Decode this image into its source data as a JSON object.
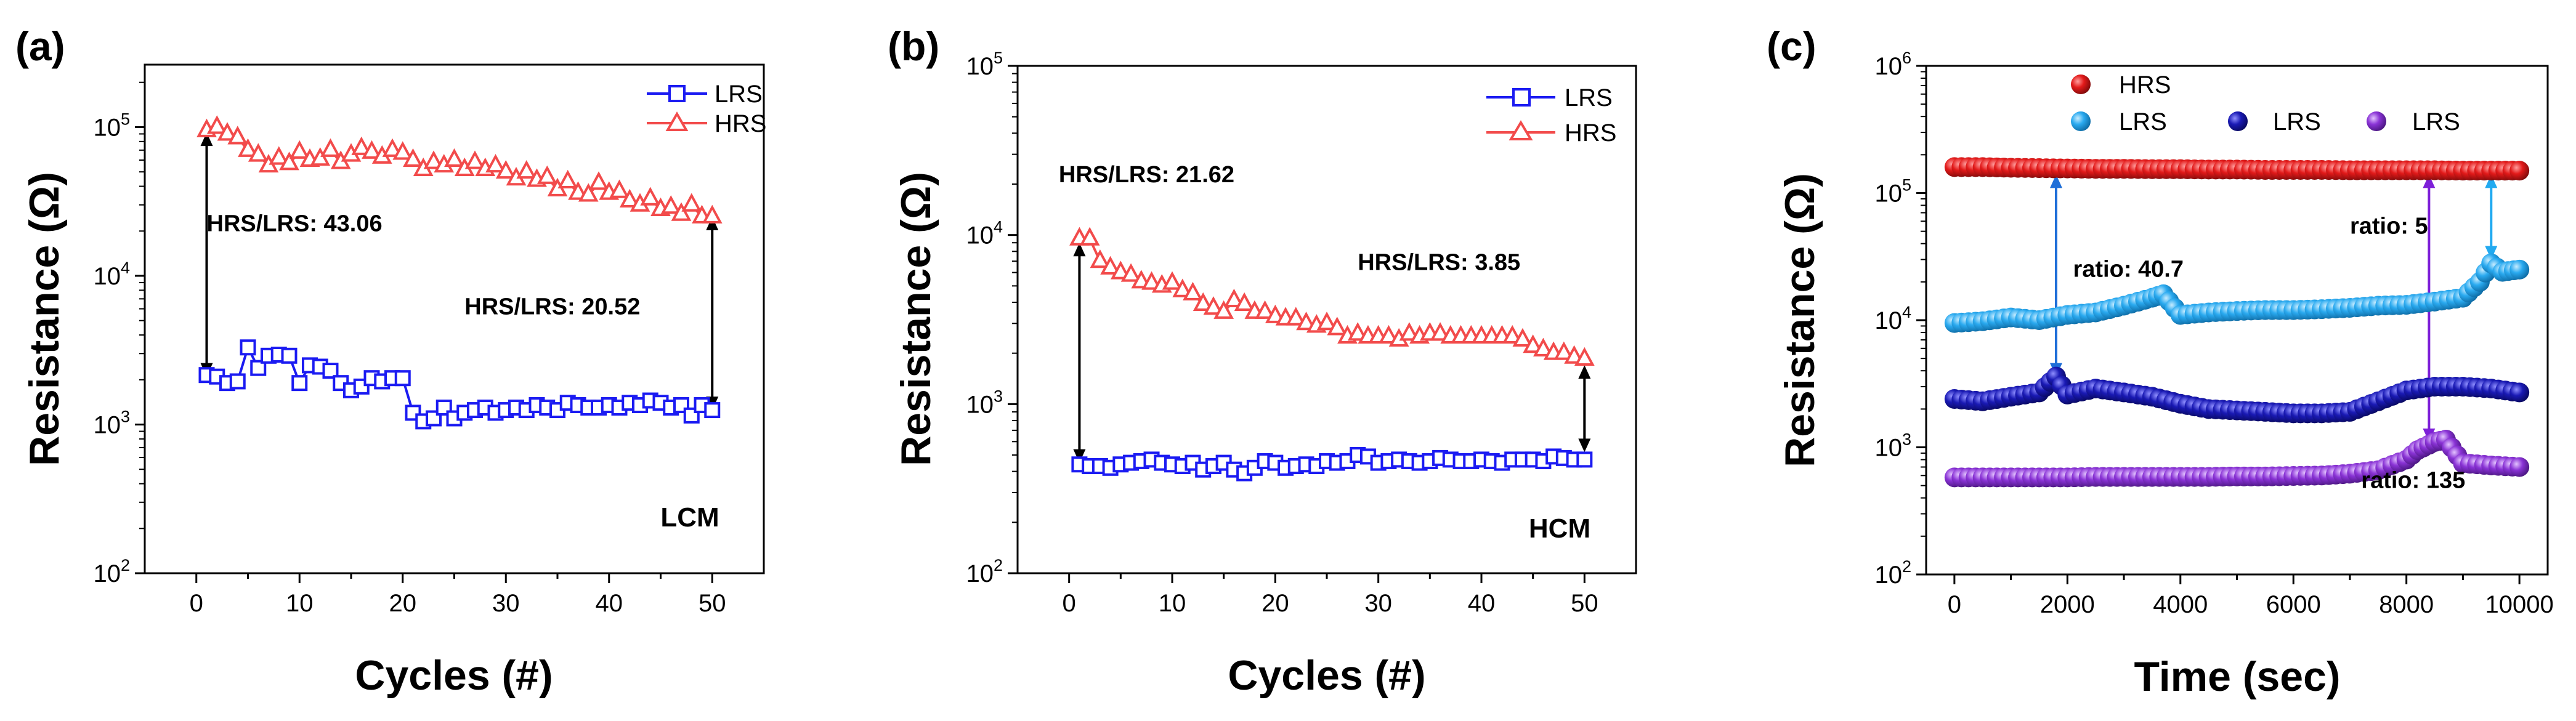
{
  "chart_data": [
    {
      "panel": "(a)",
      "type": "line",
      "xlabel": "Cycles (#)",
      "ylabel": "Resistance (Ω)",
      "xlim": [
        -5,
        55
      ],
      "ylim_log10": [
        2,
        5.42
      ],
      "xticks": [
        0,
        10,
        20,
        30,
        40,
        50
      ],
      "ytick_exps": [
        2,
        3,
        4,
        5
      ],
      "corner_label": "LCM",
      "legend": [
        "LRS",
        "HRS"
      ],
      "annotations": [
        {
          "text": "HRS/LRS: 43.06",
          "x": 1,
          "y": 20000
        },
        {
          "text": "HRS/LRS: 20.52",
          "x": 26,
          "y": 5500
        }
      ],
      "arrows": [
        {
          "x": 1,
          "y1": 2100,
          "y2": 92000,
          "color": "#000000"
        },
        {
          "x": 50,
          "y1": 1250,
          "y2": 25000,
          "color": "#000000"
        }
      ],
      "series": [
        {
          "name": "LRS",
          "marker": "square",
          "color": "#1b1bf2",
          "x": [
            1,
            2,
            3,
            4,
            5,
            6,
            7,
            8,
            9,
            10,
            11,
            12,
            13,
            14,
            15,
            16,
            17,
            18,
            19,
            20,
            21,
            22,
            23,
            24,
            25,
            26,
            27,
            28,
            29,
            30,
            31,
            32,
            33,
            34,
            35,
            36,
            37,
            38,
            39,
            40,
            41,
            42,
            43,
            44,
            45,
            46,
            47,
            48,
            49,
            50
          ],
          "values": [
            2150,
            2100,
            1900,
            1950,
            3300,
            2400,
            2900,
            2950,
            2900,
            1900,
            2500,
            2450,
            2300,
            1900,
            1700,
            1800,
            2050,
            1950,
            2050,
            2050,
            1200,
            1050,
            1100,
            1300,
            1100,
            1200,
            1250,
            1300,
            1200,
            1250,
            1300,
            1250,
            1350,
            1300,
            1250,
            1400,
            1350,
            1300,
            1300,
            1350,
            1300,
            1400,
            1350,
            1450,
            1400,
            1300,
            1350,
            1150,
            1350,
            1250
          ]
        },
        {
          "name": "HRS",
          "marker": "triangle",
          "color": "#f24b4b",
          "x": [
            1,
            2,
            3,
            4,
            5,
            6,
            7,
            8,
            9,
            10,
            11,
            12,
            13,
            14,
            15,
            16,
            17,
            18,
            19,
            20,
            21,
            22,
            23,
            24,
            25,
            26,
            27,
            28,
            29,
            30,
            31,
            32,
            33,
            34,
            35,
            36,
            37,
            38,
            39,
            40,
            41,
            42,
            43,
            44,
            45,
            46,
            47,
            48,
            49,
            50
          ],
          "values": [
            95000,
            100000,
            90000,
            85000,
            70000,
            65000,
            55000,
            62000,
            57000,
            68000,
            60000,
            61000,
            70000,
            58000,
            65000,
            72000,
            68000,
            63000,
            70000,
            67000,
            60000,
            52000,
            58000,
            55000,
            60000,
            52000,
            58000,
            52000,
            55000,
            50000,
            45000,
            50000,
            44000,
            46000,
            38000,
            43000,
            36000,
            35000,
            42000,
            36000,
            37000,
            32000,
            30000,
            33000,
            28000,
            29000,
            26000,
            30000,
            25000,
            25000
          ]
        }
      ]
    },
    {
      "panel": "(b)",
      "type": "line",
      "xlabel": "Cycles (#)",
      "ylabel": "Resistance (Ω)",
      "xlim": [
        -5,
        55
      ],
      "ylim_log10": [
        2,
        5
      ],
      "xticks": [
        0,
        10,
        20,
        30,
        40,
        50
      ],
      "ytick_exps": [
        2,
        3,
        4,
        5
      ],
      "corner_label": "HCM",
      "legend": [
        "LRS",
        "HRS"
      ],
      "annotations": [
        {
          "text": "HRS/LRS: 21.62",
          "x": -1,
          "y": 20500
        },
        {
          "text": "HRS/LRS: 3.85",
          "x": 28,
          "y": 6200
        }
      ],
      "arrows": [
        {
          "x": 1,
          "y1": 450,
          "y2": 9000,
          "color": "#000000"
        },
        {
          "x": 50,
          "y1": 520,
          "y2": 1700,
          "color": "#000000"
        }
      ],
      "series": [
        {
          "name": "LRS",
          "marker": "square",
          "color": "#1b1bf2",
          "x": [
            1,
            2,
            3,
            4,
            5,
            6,
            7,
            8,
            9,
            10,
            11,
            12,
            13,
            14,
            15,
            16,
            17,
            18,
            19,
            20,
            21,
            22,
            23,
            24,
            25,
            26,
            27,
            28,
            29,
            30,
            31,
            32,
            33,
            34,
            35,
            36,
            37,
            38,
            39,
            40,
            41,
            42,
            43,
            44,
            45,
            46,
            47,
            48,
            49,
            50
          ],
          "values": [
            440,
            430,
            430,
            420,
            440,
            450,
            460,
            470,
            450,
            440,
            430,
            450,
            410,
            430,
            450,
            410,
            390,
            420,
            460,
            450,
            420,
            430,
            440,
            430,
            460,
            450,
            460,
            500,
            490,
            450,
            460,
            470,
            460,
            450,
            460,
            480,
            470,
            460,
            460,
            470,
            460,
            450,
            470,
            470,
            470,
            460,
            490,
            480,
            470,
            470
          ]
        },
        {
          "name": "HRS",
          "marker": "triangle",
          "color": "#f24b4b",
          "x": [
            1,
            2,
            3,
            4,
            5,
            6,
            7,
            8,
            9,
            10,
            11,
            12,
            13,
            14,
            15,
            16,
            17,
            18,
            19,
            20,
            21,
            22,
            23,
            24,
            25,
            26,
            27,
            28,
            29,
            30,
            31,
            32,
            33,
            34,
            35,
            36,
            37,
            38,
            39,
            40,
            41,
            42,
            43,
            44,
            45,
            46,
            47,
            48,
            49,
            50
          ],
          "values": [
            9500,
            9500,
            7000,
            6400,
            6000,
            5800,
            5300,
            5200,
            5000,
            5200,
            4700,
            4500,
            3900,
            3700,
            3500,
            4100,
            3900,
            3500,
            3500,
            3300,
            3200,
            3200,
            3000,
            2900,
            3000,
            2800,
            2500,
            2600,
            2500,
            2500,
            2500,
            2400,
            2600,
            2500,
            2600,
            2600,
            2500,
            2500,
            2500,
            2500,
            2500,
            2500,
            2500,
            2400,
            2200,
            2100,
            2000,
            2000,
            1900,
            1850
          ]
        }
      ]
    },
    {
      "panel": "(c)",
      "type": "scatter",
      "xlabel": "Time (sec)",
      "ylabel": "Resistance (Ω)",
      "xlim": [
        -500,
        10500
      ],
      "ylim_log10": [
        2,
        6
      ],
      "xticks": [
        0,
        2000,
        4000,
        6000,
        8000,
        10000
      ],
      "ytick_exps": [
        2,
        3,
        4,
        5,
        6
      ],
      "legend": [
        "HRS",
        "LRS",
        "LRS",
        "LRS"
      ],
      "annotations": [
        {
          "text": "ratio: 40.7",
          "x": 2100,
          "y": 22000
        },
        {
          "text": "ratio: 5",
          "x": 7000,
          "y": 48000
        },
        {
          "text": "ratio: 135",
          "x": 7200,
          "y": 480
        }
      ],
      "arrows": [
        {
          "x": 1800,
          "y1": 3600,
          "y2": 140000,
          "color": "#1f6fd8"
        },
        {
          "x": 8400,
          "y1": 1100,
          "y2": 140000,
          "color": "#7d1fd8"
        },
        {
          "x": 9500,
          "y1": 30000,
          "y2": 140000,
          "color": "#22aaf0"
        }
      ],
      "series": [
        {
          "name": "HRS",
          "marker": "circle",
          "color": "#e31a1a",
          "x": [
            0,
            500,
            1000,
            1500,
            2000,
            2500,
            3000,
            3500,
            4000,
            4500,
            5000,
            5500,
            6000,
            6500,
            7000,
            7500,
            8000,
            8500,
            9000,
            9500,
            10000
          ],
          "values": [
            160000,
            160000,
            158000,
            157000,
            156000,
            155000,
            155000,
            154000,
            154000,
            153000,
            153000,
            152000,
            152000,
            152000,
            151000,
            151000,
            151000,
            151000,
            150000,
            150000,
            150000
          ]
        },
        {
          "name": "LRS (light blue)",
          "marker": "circle",
          "color": "#2aaaf0",
          "x": [
            0,
            500,
            1000,
            1500,
            2000,
            2500,
            3000,
            3500,
            3700,
            4000,
            4500,
            5000,
            5500,
            6000,
            6500,
            7000,
            7500,
            8000,
            8500,
            9000,
            9300,
            9500,
            9700,
            10000
          ],
          "values": [
            9500,
            9800,
            10500,
            10000,
            11000,
            11500,
            13000,
            15000,
            16000,
            11000,
            11500,
            11800,
            12000,
            12000,
            12200,
            12500,
            13000,
            13200,
            14000,
            15000,
            20000,
            28000,
            24000,
            25000
          ]
        },
        {
          "name": "LRS (dark blue)",
          "marker": "circle",
          "color": "#1a1ab5",
          "x": [
            0,
            500,
            1000,
            1500,
            1800,
            2000,
            2500,
            3000,
            3500,
            4000,
            4500,
            5000,
            5500,
            6000,
            6500,
            7000,
            7500,
            8000,
            8500,
            9000,
            9500,
            10000
          ],
          "values": [
            2400,
            2300,
            2500,
            2700,
            3600,
            2600,
            2900,
            2700,
            2500,
            2200,
            2000,
            1950,
            1900,
            1850,
            1850,
            1900,
            2300,
            2800,
            3000,
            3000,
            2900,
            2700
          ]
        },
        {
          "name": "LRS (purple)",
          "marker": "circle",
          "color": "#8a33d6",
          "x": [
            0,
            500,
            1000,
            1500,
            2000,
            2500,
            3000,
            3500,
            4000,
            4500,
            5000,
            5500,
            6000,
            6500,
            7000,
            7500,
            8000,
            8200,
            8500,
            8700,
            9000,
            9500,
            10000
          ],
          "values": [
            580,
            580,
            580,
            580,
            580,
            585,
            585,
            585,
            585,
            585,
            590,
            590,
            595,
            600,
            620,
            660,
            800,
            950,
            1100,
            1150,
            750,
            720,
            700
          ]
        }
      ]
    }
  ],
  "colors": {
    "lrs_blue": "#1b1bf2",
    "hrs_red": "#f24b4b",
    "hrs_dot": "#e31a1a",
    "lrs_light": "#2aaaf0",
    "lrs_dark": "#1a1ab5",
    "lrs_purple": "#8a33d6"
  }
}
